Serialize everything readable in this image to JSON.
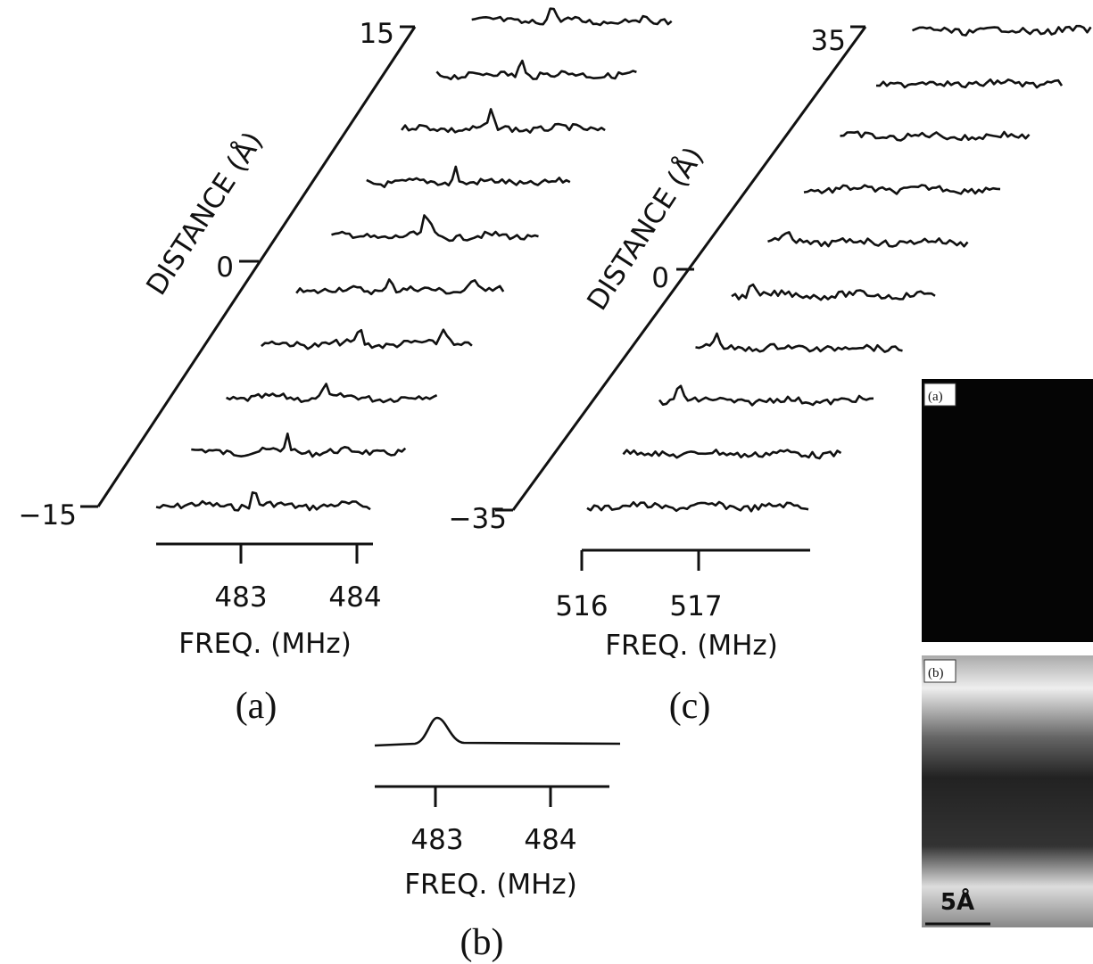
{
  "panel_a": {
    "label": "(a)",
    "y_axis_title": "DISTANCE (Å)",
    "y_ticks": [
      "15",
      "0",
      "−15"
    ],
    "x_ticks": [
      "483",
      "484"
    ],
    "x_axis_title": "FREQ. (MHz)"
  },
  "panel_b": {
    "label": "(b)",
    "x_ticks": [
      "483",
      "484"
    ],
    "x_axis_title": "FREQ. (MHz)"
  },
  "panel_c": {
    "label": "(c)",
    "y_axis_title": "DISTANCE (Å)",
    "y_ticks": [
      "35",
      "0",
      "−35"
    ],
    "x_ticks": [
      "516",
      "517"
    ],
    "x_axis_title": "FREQ. (MHz)"
  },
  "image_panels": {
    "top_label": "(a)",
    "bottom_label": "(b)",
    "scale_bar": "5Å"
  }
}
